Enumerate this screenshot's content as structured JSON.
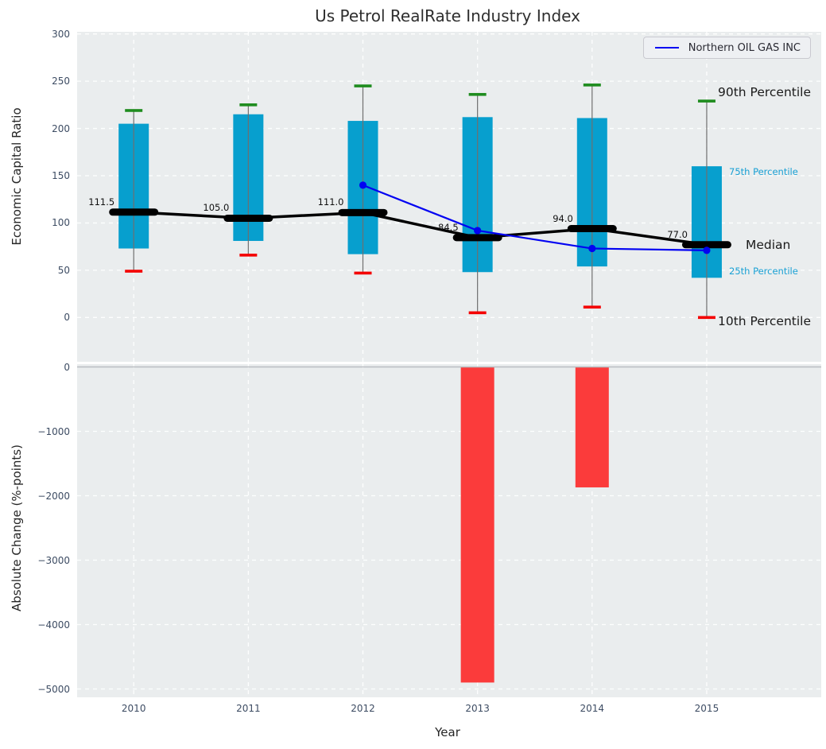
{
  "figure": {
    "title": "Us Petrol RealRate Industry Index",
    "panel_background": "#eaedee",
    "grid_color": "#ffffff",
    "tick_color": "#3d4c63",
    "axis_label_color": "#262626"
  },
  "chart_data": [
    {
      "type": "boxplot",
      "title": "Us Petrol RealRate Industry Index",
      "ylabel": "Economic Capital Ratio",
      "ylim": [
        -47,
        300
      ],
      "grid": true,
      "legend_position": "upper right",
      "categories": [
        "2010",
        "2011",
        "2012",
        "2013",
        "2014",
        "2015"
      ],
      "yticks": [
        {
          "v": 300,
          "label": "300"
        },
        {
          "v": 250,
          "label": "250"
        },
        {
          "v": 200,
          "label": "200"
        },
        {
          "v": 150,
          "label": "150"
        },
        {
          "v": 100,
          "label": "100"
        },
        {
          "v": 50,
          "label": "50"
        },
        {
          "v": 0,
          "label": "0"
        }
      ],
      "percentiles": {
        "p90": [
          219,
          225,
          245,
          236,
          246,
          229
        ],
        "p75": [
          205,
          215,
          208,
          212,
          211,
          160
        ],
        "median": [
          111.5,
          105.0,
          111.0,
          84.5,
          94.0,
          77.0
        ],
        "p25": [
          73,
          81,
          67,
          48,
          54,
          42
        ],
        "p10": [
          49,
          66,
          47,
          5,
          11,
          0
        ]
      },
      "median_labels": [
        "111.5",
        "105.0",
        "111.0",
        "84.5",
        "94.0",
        "77.0"
      ],
      "company_line": {
        "name": "Northern OIL GAS INC",
        "x": [
          "2012",
          "2013",
          "2014",
          "2015"
        ],
        "y": [
          140,
          92,
          73,
          71
        ],
        "color": "#0202f2"
      },
      "annotations": [
        {
          "text": "90th Percentile",
          "value": 238,
          "size": "large",
          "color": "#1a1a1a",
          "x": 903
        },
        {
          "text": "75th Percentile",
          "value": 154,
          "size": "small",
          "color": "#18a0d4",
          "x": 917
        },
        {
          "text": "Median",
          "value": 77,
          "size": "large",
          "color": "#1a1a1a",
          "x": 938
        },
        {
          "text": "25th Percentile",
          "value": 49,
          "size": "small",
          "color": "#18a0d4",
          "x": 917
        },
        {
          "text": "10th Percentile",
          "value": -4,
          "size": "large",
          "color": "#1a1a1a",
          "x": 903
        }
      ],
      "colors": {
        "box_fill": "#079fce",
        "whisker": "#6f6f6f",
        "cap_top": "#1e8c1e",
        "cap_bottom": "#f40000",
        "median": "#000000"
      }
    },
    {
      "type": "bar",
      "ylabel": "Absolute Change (%-points)",
      "xlabel": "Year",
      "ylim": [
        -5128,
        30
      ],
      "grid": true,
      "categories": [
        "2010",
        "2011",
        "2012",
        "2013",
        "2014",
        "2015"
      ],
      "yticks": [
        {
          "v": 0,
          "label": "0"
        },
        {
          "v": -1000,
          "label": "−1000"
        },
        {
          "v": -2000,
          "label": "−2000"
        },
        {
          "v": -3000,
          "label": "−3000"
        },
        {
          "v": -4000,
          "label": "−4000"
        },
        {
          "v": -5000,
          "label": "−5000"
        }
      ],
      "values": [
        null,
        null,
        null,
        -4900,
        -1870,
        null
      ],
      "bar_color": "#fb3b3b",
      "zero_line_color": "#b9bdc1"
    }
  ]
}
